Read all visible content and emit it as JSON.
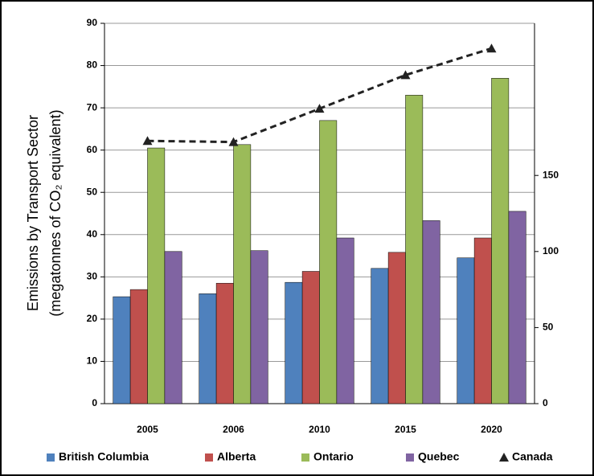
{
  "chart_data": {
    "type": "bar-line",
    "y_label": "Emissions by Transport Sector",
    "y_label_2": "(megatonnes of CO₂ equivalent)",
    "categories": [
      "2005",
      "2006",
      "2010",
      "2015",
      "2020"
    ],
    "series": [
      {
        "name": "British Columbia",
        "color": "#4f81bd",
        "values": [
          25.3,
          26,
          28.7,
          32,
          34.5
        ]
      },
      {
        "name": "Alberta",
        "color": "#c0504d",
        "values": [
          27,
          28.5,
          31.3,
          35.8,
          39.2
        ]
      },
      {
        "name": "Ontario",
        "color": "#9bbb59",
        "values": [
          60.5,
          61.3,
          67,
          73,
          77
        ]
      },
      {
        "name": "Quebec",
        "color": "#8064a2",
        "values": [
          36,
          36.2,
          39.2,
          43.3,
          45.5
        ]
      },
      {
        "name": "Canada",
        "color": "#222222",
        "axis": "y2",
        "line_style": "dashed",
        "marker": "triangle",
        "values": [
          172.7,
          172,
          193.9,
          216,
          233.5
        ]
      }
    ],
    "ylim": [
      0,
      90
    ],
    "yticks": [
      0,
      10,
      20,
      30,
      40,
      50,
      60,
      70,
      80,
      90
    ],
    "y2lim": [
      0,
      250
    ],
    "y2ticks": [
      0,
      50,
      100,
      150
    ],
    "grid": true,
    "legend": "bottom"
  }
}
